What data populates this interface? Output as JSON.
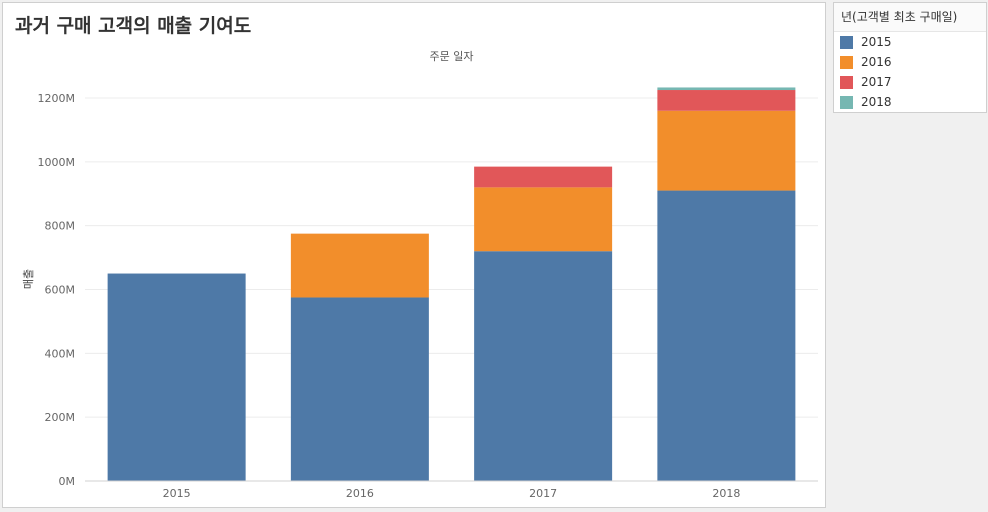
{
  "title": "과거 구매 고객의 매출 기여도",
  "legend": {
    "title": "년(고객별 최초 구매일)",
    "items": [
      {
        "label": "2015",
        "color": "#4e79a7"
      },
      {
        "label": "2016",
        "color": "#f28e2b"
      },
      {
        "label": "2017",
        "color": "#e15759"
      },
      {
        "label": "2018",
        "color": "#76b7b2"
      }
    ]
  },
  "chart_data": {
    "type": "bar",
    "stacked": true,
    "title": "과거 구매 고객의 매출 기여도",
    "header": "주문 일자",
    "ylabel": "매출",
    "xlabel": "",
    "categories": [
      "2015",
      "2016",
      "2017",
      "2018"
    ],
    "series": [
      {
        "name": "2015",
        "color": "#4e79a7",
        "values": [
          650,
          575,
          720,
          910
        ]
      },
      {
        "name": "2016",
        "color": "#f28e2b",
        "values": [
          0,
          200,
          200,
          250
        ]
      },
      {
        "name": "2017",
        "color": "#e15759",
        "values": [
          0,
          0,
          65,
          65
        ]
      },
      {
        "name": "2018",
        "color": "#76b7b2",
        "values": [
          0,
          0,
          0,
          8
        ]
      }
    ],
    "yticks": [
      0,
      200,
      400,
      600,
      800,
      1000,
      1200
    ],
    "ytick_labels": [
      "0M",
      "200M",
      "400M",
      "600M",
      "800M",
      "1000M",
      "1200M"
    ],
    "ylim": [
      0,
      1250
    ],
    "grid": true,
    "legend_position": "right"
  }
}
